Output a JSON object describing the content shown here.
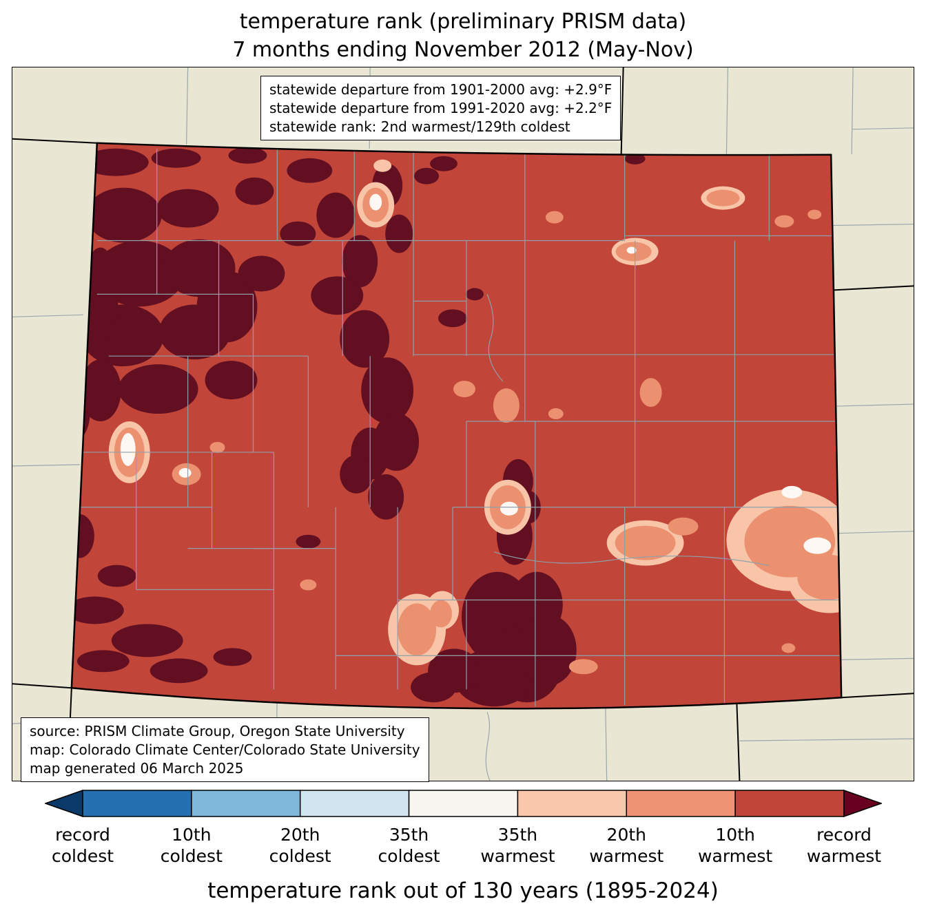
{
  "title": {
    "line1": "temperature rank (preliminary PRISM data)",
    "line2": "7 months ending November 2012 (May-Nov)"
  },
  "stats_box": {
    "lines": [
      "statewide departure from 1901-2000 avg: +2.9°F",
      "statewide departure from 1991-2020 avg: +2.2°F",
      "statewide rank: 2nd warmest/129th coldest"
    ]
  },
  "source_box": {
    "lines": [
      "source: PRISM Climate Group, Oregon State University",
      "map: Colorado Climate Center/Colorado State University",
      "map generated 06 March 2025"
    ]
  },
  "caption": "temperature rank out of 130 years (1895-2024)",
  "colorbar": {
    "left_arrow_color": "#0b3a68",
    "right_arrow_color": "#67001f",
    "segment_colors": [
      "#2470b0",
      "#7db8da",
      "#d2e4f0",
      "#f7f5f0",
      "#f9c7ab",
      "#ee9374",
      "#c2453a"
    ],
    "tick_labels": [
      {
        "line1": "record",
        "line2": "coldest"
      },
      {
        "line1": "10th",
        "line2": "coldest"
      },
      {
        "line1": "20th",
        "line2": "coldest"
      },
      {
        "line1": "35th",
        "line2": "coldest"
      },
      {
        "line1": "35th",
        "line2": "warmest"
      },
      {
        "line1": "20th",
        "line2": "warmest"
      },
      {
        "line1": "10th",
        "line2": "warmest"
      },
      {
        "line1": "record",
        "line2": "warmest"
      }
    ]
  },
  "map_colors": {
    "background_land": "#e9e6d3",
    "dominant_fill_10th_warmest": "#c2453a",
    "record_warmest_patches": "#621021",
    "warm_20th_patches": "#ec9170",
    "warm_35th_patches": "#f8c5a9",
    "near_median_white_patches": "#fdf8f3",
    "county_lines": "#8fa0ab",
    "state_border": "#000000"
  }
}
